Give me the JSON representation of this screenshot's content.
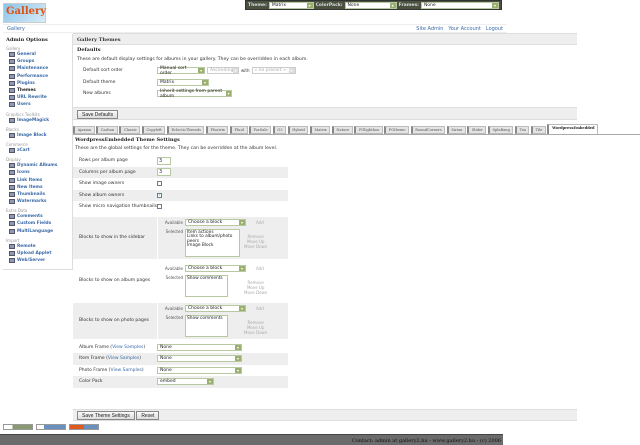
{
  "topbar": {
    "theme_label": "Theme:",
    "theme_value": "Matrix",
    "colorpack_label": "ColorPack:",
    "colorpack_value": "None",
    "frames_label": "Frames:",
    "frames_value": "None"
  },
  "logo": "Gallery",
  "breadcrumb": {
    "home": "Gallery",
    "links": [
      "Site Admin",
      "Your Account",
      "Logout"
    ]
  },
  "sidebar": {
    "title": "Admin Options",
    "groups": [
      {
        "name": "Gallery",
        "items": [
          "General",
          "Groups",
          "Maintenance",
          "Performance",
          "Plugins",
          "Themes",
          "URL Rewrite",
          "Users"
        ]
      },
      {
        "name": "Graphics Toolkits",
        "items": [
          "ImageMagick"
        ]
      },
      {
        "name": "Blocks",
        "items": [
          "Image Block"
        ]
      },
      {
        "name": "Commerce",
        "items": [
          "zCart"
        ]
      },
      {
        "name": "Display",
        "items": [
          "Dynamic Albums",
          "Icons",
          "Link Items",
          "New Items",
          "Thumbnails",
          "Watermarks"
        ]
      },
      {
        "name": "Extra Data",
        "items": [
          "Comments",
          "Custom Fields",
          "MultiLanguage"
        ]
      },
      {
        "name": "Import",
        "items": [
          "Remote",
          "Upload Applet",
          "Web/Server"
        ]
      }
    ],
    "current": "Themes"
  },
  "page": {
    "title": "Gallery Themes"
  },
  "defaults": {
    "title": "Defaults",
    "description": "These are default display settings for albums in your gallery. They can be overridden in each album.",
    "sort_label": "Default sort order",
    "sort_value": "Manual sort order",
    "sort_dir": "Ascending",
    "with_label": "with",
    "presort": "« no presort »",
    "theme_label": "Default theme",
    "theme_value": "Matrix",
    "new_label": "New albums",
    "new_value": "Inherit settings from parent album",
    "save": "Save Defaults"
  },
  "tabs": [
    "Ajaxian",
    "Carbon",
    "Classic",
    "Copyleft",
    "EclecticThreads",
    "Floatrix",
    "Fluid",
    "ForSale",
    "G3",
    "Hybrid",
    "Matrix",
    "Nature",
    "PGlightbox",
    "PGtheme",
    "RoundCorners",
    "Siriux",
    "Slider",
    "SplaBang",
    "Tsn",
    "Tile",
    "WordpressEmbedded"
  ],
  "active_tab": "WordpressEmbedded",
  "theme_settings": {
    "title": "WordpressEmbedded Theme Settings",
    "description": "These are the global settings for the theme. They can be overridden at the album level.",
    "rows_label": "Rows per album page",
    "rows_value": "3",
    "cols_label": "Columns per album page",
    "cols_value": "3",
    "image_owners_label": "Show image owners",
    "image_owners": false,
    "album_owners_label": "Show album owners",
    "album_owners": true,
    "micro_label": "Show micro navigation thumbnails",
    "micro": false,
    "available_label": "Available",
    "selected_label": "Selected",
    "choose": "Choose a block",
    "add": "Add",
    "remove": "Remove",
    "move_up": "Move Up",
    "move_down": "Move Down",
    "blocks": [
      {
        "label": "Blocks to show in the sidebar",
        "selected": [
          "Item actions",
          "Links to album/photo peers",
          "Image Block"
        ]
      },
      {
        "label": "Blocks to show on album pages",
        "selected": [
          "Show comments"
        ]
      },
      {
        "label": "Blocks to show on photo pages",
        "selected": [
          "Show comments"
        ]
      }
    ],
    "view_samples": "View Samples",
    "album_frame_label": "Album Frame",
    "album_frame": "None",
    "item_frame_label": "Item Frame",
    "item_frame": "None",
    "photo_frame_label": "Photo Frame",
    "photo_frame": "None",
    "color_pack_label": "Color Pack",
    "color_pack": "embed",
    "save": "Save Theme Settings",
    "reset": "Reset"
  },
  "footer": "Contact: admin at gallery2.hu - www.gallery2.hu - (c) 2006"
}
